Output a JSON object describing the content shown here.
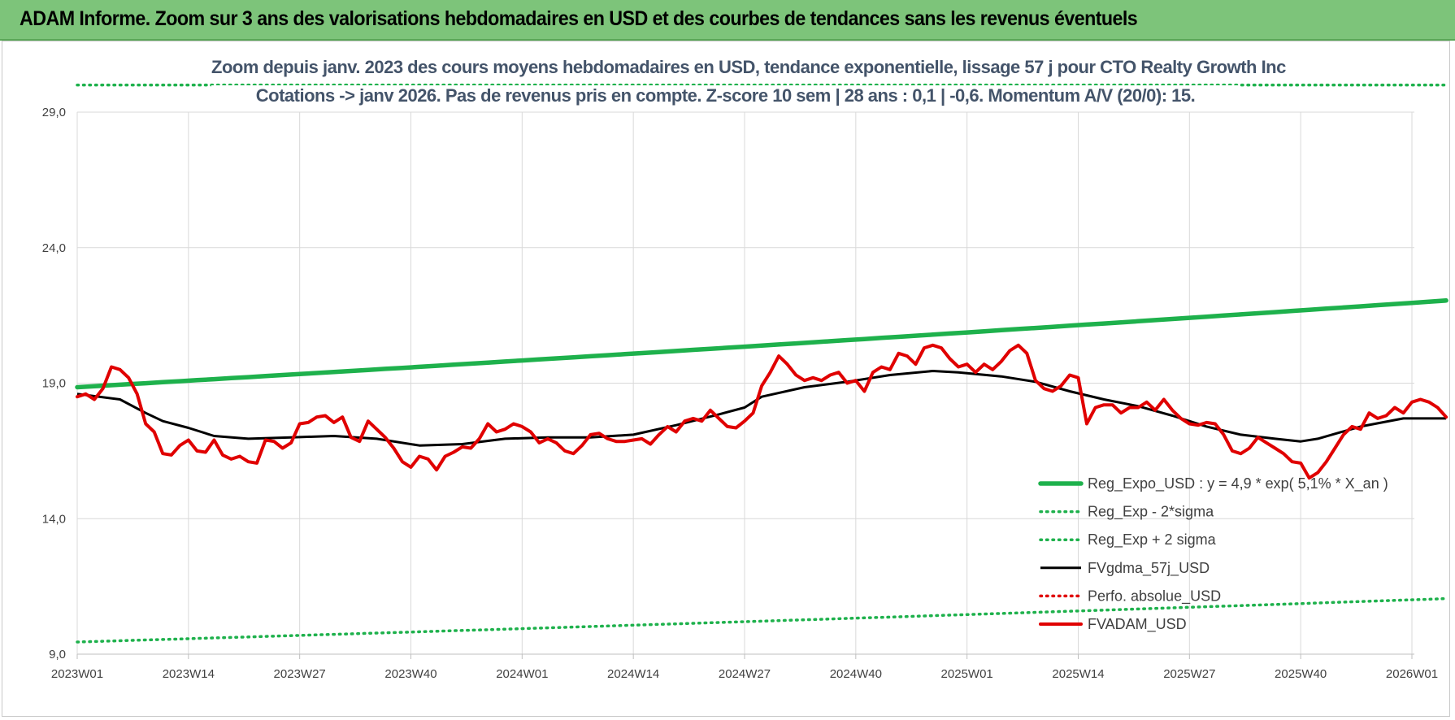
{
  "banner": {
    "title": "ADAM Informe. Zoom sur 3 ans des valorisations hebdomadaires en USD et des courbes de tendances sans les revenus éventuels"
  },
  "chart_data": {
    "type": "line",
    "title_line1": "Zoom depuis janv. 2023 des cours moyens hebdomadaires en USD, tendance exponentielle, lissage 57 j pour CTO Realty Growth Inc",
    "title_line2": "Cotations -> janv 2026. Pas de revenus pris en compte. Z-score 10 sem | 28 ans : 0,1 | -0,6. Momentum A/V (20/0): 15.",
    "ylim": [
      9,
      29
    ],
    "yticks": [
      "9,0",
      "14,0",
      "19,0",
      "24,0",
      "29,0"
    ],
    "ytick_values": [
      9,
      14,
      19,
      24,
      29
    ],
    "x_labels": [
      "2023W01",
      "2023W14",
      "2023W27",
      "2023W40",
      "2024W01",
      "2024W14",
      "2024W27",
      "2024W40",
      "2025W01",
      "2025W14",
      "2025W27",
      "2025W40",
      "2026W01"
    ],
    "x_label_indices": [
      0,
      13,
      26,
      39,
      52,
      65,
      78,
      91,
      104,
      117,
      130,
      143,
      156
    ],
    "n_weeks": 161,
    "grid": "horizontal and vertical",
    "legend_position": "bottom-right",
    "series": [
      {
        "name": "Reg_Expo_USD : y = 4,9 * exp( 5,1% * X_an )",
        "color": "#1eb14c",
        "style": "solid-thick",
        "start": 18.85,
        "end": 22.05
      },
      {
        "name": "Reg_Exp - 2*sigma",
        "color": "#1eb14c",
        "style": "dotted",
        "start": 9.45,
        "end": 11.05
      },
      {
        "name": "Reg_Exp + 2 sigma",
        "color": "#1eb14c",
        "style": "dotted",
        "start": 30.0,
        "end": 30.0
      },
      {
        "name": "FVgdma_57j_USD",
        "color": "#000000",
        "style": "solid",
        "points": [
          [
            0,
            18.6
          ],
          [
            5,
            18.4
          ],
          [
            8,
            17.9
          ],
          [
            10,
            17.6
          ],
          [
            13,
            17.35
          ],
          [
            16,
            17.05
          ],
          [
            20,
            16.95
          ],
          [
            25,
            17.0
          ],
          [
            30,
            17.05
          ],
          [
            35,
            16.95
          ],
          [
            40,
            16.7
          ],
          [
            45,
            16.75
          ],
          [
            50,
            16.95
          ],
          [
            55,
            17.0
          ],
          [
            60,
            17.0
          ],
          [
            65,
            17.1
          ],
          [
            70,
            17.45
          ],
          [
            75,
            17.85
          ],
          [
            78,
            18.1
          ],
          [
            80,
            18.5
          ],
          [
            85,
            18.85
          ],
          [
            90,
            19.05
          ],
          [
            95,
            19.3
          ],
          [
            100,
            19.45
          ],
          [
            103,
            19.4
          ],
          [
            108,
            19.25
          ],
          [
            112,
            19.05
          ],
          [
            116,
            18.7
          ],
          [
            120,
            18.4
          ],
          [
            124,
            18.15
          ],
          [
            128,
            17.8
          ],
          [
            132,
            17.4
          ],
          [
            136,
            17.1
          ],
          [
            140,
            16.95
          ],
          [
            143,
            16.85
          ],
          [
            145,
            16.95
          ],
          [
            150,
            17.4
          ],
          [
            155,
            17.7
          ],
          [
            160,
            17.7
          ]
        ]
      },
      {
        "name": "Perfo. absolue_USD",
        "color": "#e00000",
        "style": "dotted",
        "points": []
      },
      {
        "name": "FVADAM_USD",
        "color": "#e00000",
        "style": "solid-thick",
        "points": [
          [
            0,
            18.5
          ],
          [
            1,
            18.6
          ],
          [
            2,
            18.4
          ],
          [
            3,
            18.8
          ],
          [
            4,
            19.6
          ],
          [
            5,
            19.5
          ],
          [
            6,
            19.2
          ],
          [
            7,
            18.6
          ],
          [
            8,
            17.5
          ],
          [
            9,
            17.2
          ],
          [
            10,
            16.4
          ],
          [
            11,
            16.35
          ],
          [
            12,
            16.7
          ],
          [
            13,
            16.9
          ],
          [
            14,
            16.5
          ],
          [
            15,
            16.45
          ],
          [
            16,
            16.9
          ],
          [
            17,
            16.35
          ],
          [
            18,
            16.2
          ],
          [
            19,
            16.3
          ],
          [
            20,
            16.1
          ],
          [
            21,
            16.05
          ],
          [
            22,
            16.9
          ],
          [
            23,
            16.85
          ],
          [
            24,
            16.6
          ],
          [
            25,
            16.8
          ],
          [
            26,
            17.5
          ],
          [
            27,
            17.55
          ],
          [
            28,
            17.75
          ],
          [
            29,
            17.8
          ],
          [
            30,
            17.55
          ],
          [
            31,
            17.75
          ],
          [
            32,
            17.0
          ],
          [
            33,
            16.85
          ],
          [
            34,
            17.6
          ],
          [
            35,
            17.3
          ],
          [
            36,
            17.0
          ],
          [
            37,
            16.6
          ],
          [
            38,
            16.1
          ],
          [
            39,
            15.9
          ],
          [
            40,
            16.3
          ],
          [
            41,
            16.2
          ],
          [
            42,
            15.8
          ],
          [
            43,
            16.3
          ],
          [
            44,
            16.45
          ],
          [
            45,
            16.65
          ],
          [
            46,
            16.6
          ],
          [
            47,
            16.95
          ],
          [
            48,
            17.5
          ],
          [
            49,
            17.2
          ],
          [
            50,
            17.3
          ],
          [
            51,
            17.5
          ],
          [
            52,
            17.4
          ],
          [
            53,
            17.2
          ],
          [
            54,
            16.8
          ],
          [
            55,
            16.95
          ],
          [
            56,
            16.8
          ],
          [
            57,
            16.5
          ],
          [
            58,
            16.4
          ],
          [
            59,
            16.7
          ],
          [
            60,
            17.1
          ],
          [
            61,
            17.15
          ],
          [
            62,
            16.95
          ],
          [
            63,
            16.85
          ],
          [
            64,
            16.85
          ],
          [
            65,
            16.9
          ],
          [
            66,
            16.95
          ],
          [
            67,
            16.75
          ],
          [
            68,
            17.1
          ],
          [
            69,
            17.4
          ],
          [
            70,
            17.2
          ],
          [
            71,
            17.6
          ],
          [
            72,
            17.7
          ],
          [
            73,
            17.6
          ],
          [
            74,
            18.0
          ],
          [
            75,
            17.7
          ],
          [
            76,
            17.4
          ],
          [
            77,
            17.35
          ],
          [
            78,
            17.6
          ],
          [
            79,
            17.9
          ],
          [
            80,
            18.9
          ],
          [
            81,
            19.4
          ],
          [
            82,
            20.0
          ],
          [
            83,
            19.7
          ],
          [
            84,
            19.3
          ],
          [
            85,
            19.1
          ],
          [
            86,
            19.2
          ],
          [
            87,
            19.1
          ],
          [
            88,
            19.3
          ],
          [
            89,
            19.4
          ],
          [
            90,
            19.0
          ],
          [
            91,
            19.1
          ],
          [
            92,
            18.7
          ],
          [
            93,
            19.4
          ],
          [
            94,
            19.6
          ],
          [
            95,
            19.5
          ],
          [
            96,
            20.1
          ],
          [
            97,
            20.0
          ],
          [
            98,
            19.7
          ],
          [
            99,
            20.3
          ],
          [
            100,
            20.4
          ],
          [
            101,
            20.3
          ],
          [
            102,
            19.9
          ],
          [
            103,
            19.6
          ],
          [
            104,
            19.7
          ],
          [
            105,
            19.4
          ],
          [
            106,
            19.7
          ],
          [
            107,
            19.5
          ],
          [
            108,
            19.8
          ],
          [
            109,
            20.2
          ],
          [
            110,
            20.4
          ],
          [
            111,
            20.1
          ],
          [
            112,
            19.1
          ],
          [
            113,
            18.8
          ],
          [
            114,
            18.7
          ],
          [
            115,
            18.9
          ],
          [
            116,
            19.3
          ],
          [
            117,
            19.2
          ],
          [
            118,
            17.5
          ],
          [
            119,
            18.1
          ],
          [
            120,
            18.2
          ],
          [
            121,
            18.2
          ],
          [
            122,
            17.9
          ],
          [
            123,
            18.1
          ],
          [
            124,
            18.1
          ],
          [
            125,
            18.3
          ],
          [
            126,
            18.0
          ],
          [
            127,
            18.4
          ],
          [
            128,
            18.0
          ],
          [
            129,
            17.7
          ],
          [
            130,
            17.5
          ],
          [
            131,
            17.45
          ],
          [
            132,
            17.55
          ],
          [
            133,
            17.5
          ],
          [
            134,
            17.1
          ],
          [
            135,
            16.5
          ],
          [
            136,
            16.4
          ],
          [
            137,
            16.6
          ],
          [
            138,
            17.0
          ],
          [
            139,
            16.8
          ],
          [
            140,
            16.6
          ],
          [
            141,
            16.4
          ],
          [
            142,
            16.1
          ],
          [
            143,
            16.05
          ],
          [
            144,
            15.5
          ],
          [
            145,
            15.7
          ],
          [
            146,
            16.1
          ],
          [
            147,
            16.6
          ],
          [
            148,
            17.1
          ],
          [
            149,
            17.4
          ],
          [
            150,
            17.3
          ],
          [
            151,
            17.9
          ],
          [
            152,
            17.7
          ],
          [
            153,
            17.8
          ],
          [
            154,
            18.1
          ],
          [
            155,
            17.9
          ],
          [
            156,
            18.3
          ],
          [
            157,
            18.4
          ],
          [
            158,
            18.3
          ],
          [
            159,
            18.1
          ],
          [
            160,
            17.75
          ]
        ]
      }
    ]
  }
}
